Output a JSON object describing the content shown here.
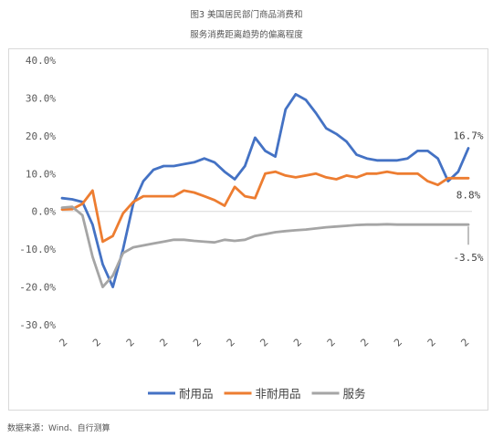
{
  "title_line1": "图3 美国居民部门商品消费和",
  "title_line2": "服务消费距离趋势的偏离程度",
  "source": "数据来源：Wind、自行测算",
  "chart_data": {
    "type": "line",
    "ylim": [
      -30,
      40
    ],
    "yticks": [
      40,
      30,
      20,
      10,
      0,
      -10,
      -20,
      -30
    ],
    "ytick_labels": [
      "40.0%",
      "30.0%",
      "20.0%",
      "10.0%",
      "0.0%",
      "-10.0%",
      "-20.0%",
      "-30.0%"
    ],
    "xtick_labels": [
      "2",
      "2",
      "2",
      "2",
      "2",
      "2",
      "2",
      "2",
      "2",
      "2",
      "2",
      "2",
      "2"
    ],
    "x": [
      0,
      1,
      2,
      3,
      4,
      5,
      6,
      7,
      8,
      9,
      10,
      11,
      12,
      13,
      14,
      15,
      16,
      17,
      18,
      19,
      20,
      21,
      22,
      23,
      24,
      25,
      26,
      27,
      28,
      29,
      30,
      31,
      32,
      33,
      34,
      35,
      36,
      37,
      38,
      39,
      40,
      41,
      42,
      43,
      44,
      45,
      46,
      47,
      48,
      49,
      50,
      51,
      52,
      53,
      54,
      55,
      56,
      57,
      58,
      59,
      60,
      61,
      62,
      63,
      64,
      65
    ],
    "legend_position": "bottom",
    "grid": false,
    "series": [
      {
        "name": "耐用品",
        "color": "#4472c4",
        "values": [
          3.5,
          3.2,
          2.5,
          -3.5,
          -14.0,
          -20.0,
          -10.0,
          2.0,
          8.0,
          11.0,
          12.0,
          12.0,
          12.5,
          13.0,
          14.0,
          13.0,
          10.5,
          8.5,
          12.0,
          19.5,
          16.0,
          14.5,
          27.0,
          31.0,
          29.5,
          26.0,
          22.0,
          20.5,
          18.5,
          15.0,
          14.0,
          13.5,
          13.5,
          13.5,
          14.0,
          16.0,
          16.0,
          14.0,
          8.0,
          10.5,
          16.7,
          16.7,
          16.7,
          16.7,
          16.7,
          16.7,
          16.7,
          16.7,
          16.7,
          16.7,
          16.7,
          16.7,
          16.7,
          16.7,
          16.7,
          16.7,
          16.7,
          16.7,
          16.7,
          16.7,
          16.7,
          16.7,
          16.7,
          16.7,
          16.7,
          16.7
        ]
      },
      {
        "name": "非耐用品",
        "color": "#ed7d31",
        "values": [
          0.5,
          0.6,
          2.0,
          5.5,
          -8.0,
          -6.5,
          -0.5,
          2.5,
          4.0,
          4.0,
          4.0,
          4.0,
          5.5,
          5.0,
          4.0,
          3.0,
          1.5,
          6.5,
          4.0,
          3.5,
          10.0,
          10.5,
          9.5,
          9.0,
          9.5,
          10.0,
          9.0,
          8.5,
          9.5,
          9.0,
          10.0,
          10.0,
          10.5,
          10.0,
          10.0,
          10.0,
          8.0,
          7.0,
          8.8,
          8.8,
          8.8,
          8.8,
          8.8,
          8.8,
          8.8,
          8.8,
          8.8,
          8.8,
          8.8,
          8.8,
          8.8,
          8.8,
          8.8,
          8.8,
          8.8,
          8.8,
          8.8,
          8.8,
          8.8,
          8.8,
          8.8,
          8.8,
          8.8,
          8.8,
          8.8,
          8.8
        ]
      },
      {
        "name": "服务",
        "color": "#a5a5a5",
        "values": [
          1.0,
          1.2,
          -1.0,
          -12.0,
          -20.0,
          -17.0,
          -11.0,
          -9.5,
          -9.0,
          -8.5,
          -8.0,
          -7.5,
          -7.5,
          -7.8,
          -8.0,
          -8.2,
          -7.5,
          -7.8,
          -7.5,
          -6.5,
          -6.0,
          -5.5,
          -5.2,
          -5.0,
          -4.8,
          -4.5,
          -4.2,
          -4.0,
          -3.8,
          -3.6,
          -3.5,
          -3.5,
          -3.4,
          -3.5,
          -3.5,
          -3.5,
          -3.5,
          -3.5,
          -3.5,
          -3.5,
          -3.5,
          -3.5,
          -3.5,
          -3.5,
          -3.5,
          -3.5,
          -3.5,
          -3.5,
          -3.5,
          -3.5,
          -3.5,
          -3.5,
          -3.5,
          -3.5,
          -3.5,
          -3.5,
          -3.5,
          -3.5,
          -3.5,
          -3.5,
          -3.5,
          -3.5,
          -3.5,
          -3.5,
          -3.5,
          -3.5
        ]
      }
    ],
    "annotations": [
      {
        "text": "16.7%",
        "series": 0
      },
      {
        "text": "8.8%",
        "series": 1
      },
      {
        "text": "-3.5%",
        "series": 2
      }
    ]
  }
}
